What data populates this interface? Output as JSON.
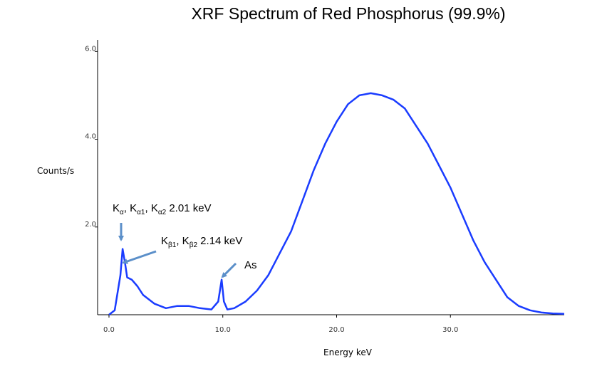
{
  "chart_data": {
    "type": "line",
    "title": "XRF Spectrum of Red Phosphorus (99.9%)",
    "xlabel": "Energy keV",
    "ylabel": "Counts/s",
    "xlim": [
      -1,
      40
    ],
    "ylim": [
      0,
      6.2
    ],
    "xticks": [
      0,
      10,
      20,
      30
    ],
    "xtick_labels": [
      "0.0",
      "10.0",
      "20.0",
      "30.0"
    ],
    "yticks": [
      2,
      4,
      6
    ],
    "ytick_labels": [
      "2.0",
      "4.0",
      "6.0"
    ],
    "grid": false,
    "legend": "none",
    "line_color": "#1a3cff",
    "arrow_color": "#5b8fc9",
    "series": [
      {
        "x": [
          0,
          0.5,
          1.0,
          1.2,
          1.4,
          1.6,
          2.0,
          2.5,
          3,
          4,
          5,
          6,
          7,
          8,
          9,
          9.6,
          9.9,
          10.1,
          10.4,
          11,
          12,
          13,
          14,
          15,
          16,
          17,
          18,
          19,
          20,
          21,
          22,
          23,
          24,
          25,
          26,
          27,
          28,
          29,
          30,
          31,
          32,
          33,
          34,
          35,
          36,
          37,
          38,
          39,
          40
        ],
        "y": [
          0,
          0.1,
          0.9,
          1.5,
          1.2,
          0.85,
          0.8,
          0.65,
          0.45,
          0.25,
          0.15,
          0.2,
          0.2,
          0.15,
          0.12,
          0.3,
          0.8,
          0.3,
          0.12,
          0.15,
          0.3,
          0.55,
          0.9,
          1.4,
          1.9,
          2.6,
          3.3,
          3.9,
          4.4,
          4.8,
          5.0,
          5.05,
          5.0,
          4.9,
          4.7,
          4.3,
          3.9,
          3.4,
          2.9,
          2.3,
          1.7,
          1.2,
          0.8,
          0.4,
          0.2,
          0.1,
          0.05,
          0.03,
          0.02
        ]
      }
    ],
    "annotations": [
      {
        "id": "k-alpha",
        "parts": [
          {
            "t": "K"
          },
          {
            "t": "α",
            "sub": true
          },
          {
            "t": ", K"
          },
          {
            "t": "α1",
            "sub": true
          },
          {
            "t": ", K"
          },
          {
            "t": "α2",
            "sub": true
          },
          {
            "t": "  2.01 keV"
          }
        ],
        "target": [
          1.5,
          1.6
        ]
      },
      {
        "id": "k-beta",
        "parts": [
          {
            "t": "K"
          },
          {
            "t": "β1",
            "sub": true
          },
          {
            "t": ", K"
          },
          {
            "t": "β2",
            "sub": true
          },
          {
            "t": "  2.14 keV"
          }
        ],
        "target": [
          1.5,
          1.15
        ]
      },
      {
        "id": "as",
        "parts": [
          {
            "t": "As"
          }
        ],
        "target": [
          9.9,
          0.85
        ]
      }
    ]
  }
}
